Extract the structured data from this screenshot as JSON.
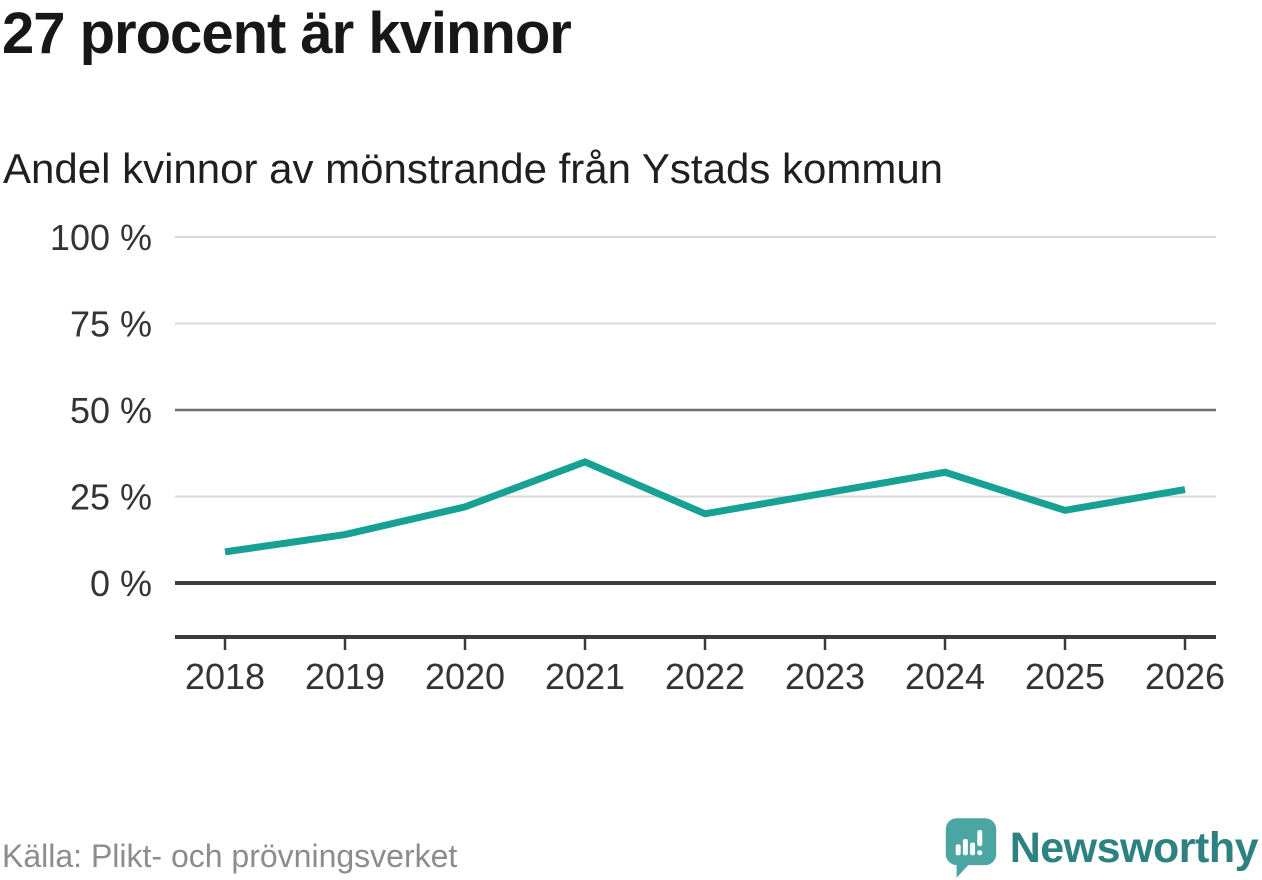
{
  "header": {
    "title": "27 procent är kvinnor",
    "subtitle": "Andel kvinnor av mönstrande från Ystads kommun"
  },
  "footer": {
    "source": "Källa: Plikt- och prövningsverket",
    "brand": "Newsworthy"
  },
  "colors": {
    "accent_line": "#16a194",
    "logo_bubble": "#4aa5a3",
    "brand_text": "#2d8181"
  },
  "chart_data": {
    "type": "line",
    "title": "27 procent är kvinnor",
    "subtitle": "Andel kvinnor av mönstrande från Ystads kommun",
    "x": [
      2018,
      2019,
      2020,
      2021,
      2022,
      2023,
      2024,
      2025,
      2026
    ],
    "series": [
      {
        "name": "Andel kvinnor av mönstrande",
        "values": [
          9,
          14,
          22,
          35,
          20,
          26,
          32,
          21,
          27
        ]
      }
    ],
    "unit": "%",
    "ylim": [
      0,
      100
    ],
    "yticks": [
      0,
      25,
      50,
      75,
      100
    ],
    "ytick_labels": [
      "0 %",
      "25 %",
      "50 %",
      "75 %",
      "100 %"
    ],
    "xtick_labels": [
      "2018",
      "2019",
      "2020",
      "2021",
      "2022",
      "2023",
      "2024",
      "2025",
      "2026"
    ],
    "grid": "horizontal",
    "legend": false,
    "line_color": "#16a194"
  }
}
